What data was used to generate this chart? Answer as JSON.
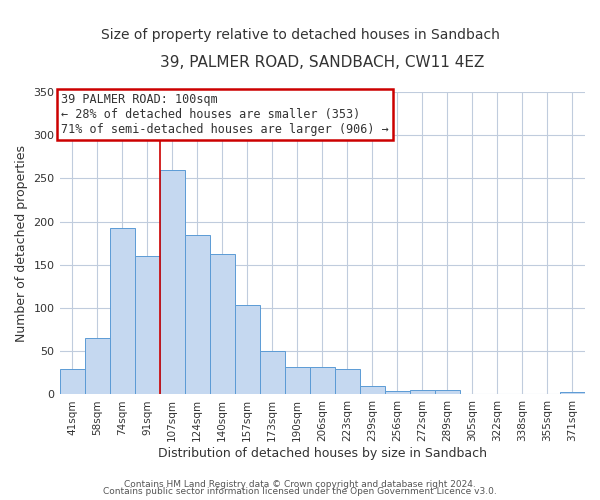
{
  "title": "39, PALMER ROAD, SANDBACH, CW11 4EZ",
  "subtitle": "Size of property relative to detached houses in Sandbach",
  "xlabel": "Distribution of detached houses by size in Sandbach",
  "ylabel": "Number of detached properties",
  "bar_labels": [
    "41sqm",
    "58sqm",
    "74sqm",
    "91sqm",
    "107sqm",
    "124sqm",
    "140sqm",
    "157sqm",
    "173sqm",
    "190sqm",
    "206sqm",
    "223sqm",
    "239sqm",
    "256sqm",
    "272sqm",
    "289sqm",
    "305sqm",
    "322sqm",
    "338sqm",
    "355sqm",
    "371sqm"
  ],
  "bar_values": [
    30,
    65,
    193,
    160,
    260,
    184,
    163,
    103,
    50,
    32,
    32,
    30,
    10,
    4,
    5,
    5,
    0,
    0,
    0,
    0,
    3
  ],
  "bar_color": "#c5d8f0",
  "bar_edge_color": "#5b9bd5",
  "annotation_text_line1": "39 PALMER ROAD: 100sqm",
  "annotation_text_line2": "← 28% of detached houses are smaller (353)",
  "annotation_text_line3": "71% of semi-detached houses are larger (906) →",
  "annotation_box_color": "#ffffff",
  "annotation_box_edge_color": "#cc0000",
  "vline_x": 4,
  "ylim": [
    0,
    350
  ],
  "yticks": [
    0,
    50,
    100,
    150,
    200,
    250,
    300,
    350
  ],
  "footer_line1": "Contains HM Land Registry data © Crown copyright and database right 2024.",
  "footer_line2": "Contains public sector information licensed under the Open Government Licence v3.0.",
  "background_color": "#ffffff",
  "grid_color": "#c0ccdd",
  "title_fontsize": 11,
  "subtitle_fontsize": 10,
  "axis_label_fontsize": 9,
  "tick_fontsize": 7.5,
  "footer_fontsize": 6.5,
  "annotation_fontsize": 8.5
}
